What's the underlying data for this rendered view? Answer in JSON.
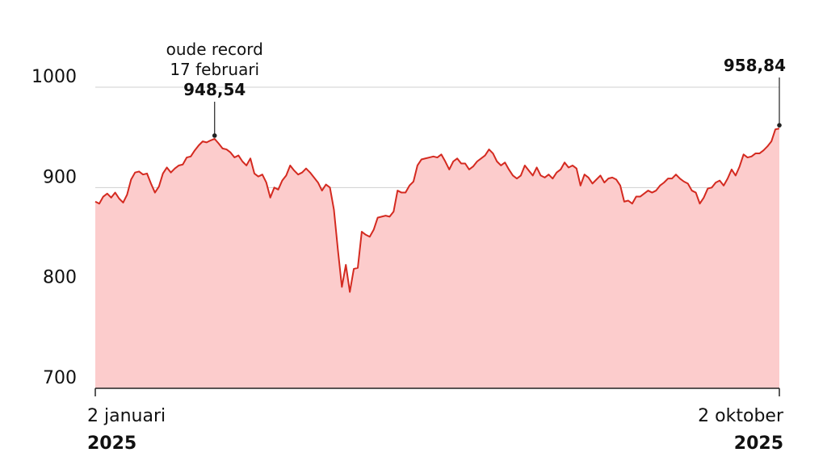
{
  "chart_data": {
    "type": "area",
    "values": [
      886,
      884,
      891,
      894,
      890,
      895,
      889,
      885,
      893,
      908,
      915,
      916,
      913,
      914,
      904,
      895,
      901,
      914,
      920,
      915,
      919,
      922,
      923,
      930,
      931,
      937,
      942,
      946,
      945,
      947,
      948.54,
      944,
      939,
      938,
      935,
      930,
      932,
      926,
      922,
      929,
      914,
      911,
      913,
      905,
      890,
      900,
      898,
      907,
      912,
      922,
      917,
      913,
      915,
      919,
      915,
      910,
      905,
      897,
      903,
      900,
      878,
      838,
      801,
      823,
      796,
      819,
      820,
      856,
      853,
      851,
      858,
      870,
      871,
      872,
      871,
      876,
      897,
      895,
      895,
      902,
      906,
      922,
      928,
      929,
      930,
      931,
      930,
      933,
      926,
      918,
      926,
      929,
      924,
      924,
      918,
      921,
      926,
      929,
      932,
      938,
      934,
      926,
      922,
      925,
      918,
      912,
      909,
      912,
      922,
      917,
      912,
      920,
      912,
      910,
      913,
      909,
      915,
      918,
      925,
      920,
      922,
      919,
      902,
      913,
      910,
      904,
      908,
      912,
      905,
      909,
      910,
      908,
      902,
      886,
      887,
      884,
      891,
      891,
      894,
      897,
      895,
      897,
      902,
      905,
      909,
      909,
      913,
      909,
      906,
      904,
      897,
      895,
      884,
      890,
      899,
      900,
      905,
      907,
      902,
      909,
      918,
      912,
      921,
      933,
      930,
      931,
      934,
      934,
      937,
      941,
      946,
      958,
      958.84
    ],
    "categories": [
      "2 januari",
      null,
      null,
      null,
      null,
      null,
      null,
      null,
      null,
      null,
      null,
      null,
      null,
      null,
      null,
      null,
      null,
      null,
      null,
      null,
      null,
      null,
      null,
      null,
      null,
      null,
      null,
      null,
      null,
      null,
      null,
      null,
      null,
      null,
      null,
      null,
      null,
      null,
      null,
      null,
      null,
      null,
      null,
      null,
      null,
      null,
      null,
      null,
      null,
      null,
      null,
      null,
      null,
      null,
      null,
      null,
      null,
      null,
      null,
      null,
      null,
      null,
      null,
      null,
      null,
      null,
      null,
      null,
      null,
      null,
      null,
      null,
      null,
      null,
      null,
      null,
      null,
      null,
      null,
      null,
      null,
      null,
      null,
      null,
      null,
      null,
      null,
      null,
      null,
      null,
      null,
      null,
      null,
      null,
      null,
      null,
      null,
      null,
      null,
      null,
      null,
      null,
      null,
      null,
      null,
      null,
      null,
      null,
      null,
      null,
      null,
      null,
      null,
      null,
      null,
      null,
      null,
      null,
      null,
      null,
      null,
      null,
      null,
      null,
      null,
      null,
      null,
      null,
      null,
      null,
      null,
      null,
      null,
      null,
      null,
      null,
      null,
      null,
      null,
      null,
      null,
      null,
      null,
      null,
      null,
      null,
      null,
      null,
      null,
      null,
      null,
      null,
      null,
      null,
      null,
      null,
      null,
      null,
      null,
      null,
      null,
      null,
      null,
      null,
      null,
      null,
      null,
      null,
      null,
      null,
      null,
      null,
      "2 oktober"
    ],
    "x_year": [
      "2025",
      "2025"
    ],
    "line_color": "#d42a20",
    "fill_color": "#fccccc",
    "ylim": [
      700,
      1000
    ],
    "yticks": [
      700,
      800,
      900,
      1000
    ],
    "grid": true,
    "annotations": [
      {
        "text": [
          "oude record",
          "17 februari"
        ],
        "value": 948.54,
        "value_label": "948,54"
      },
      {
        "text": [],
        "value": 958.84,
        "value_label": "958,84"
      }
    ]
  }
}
